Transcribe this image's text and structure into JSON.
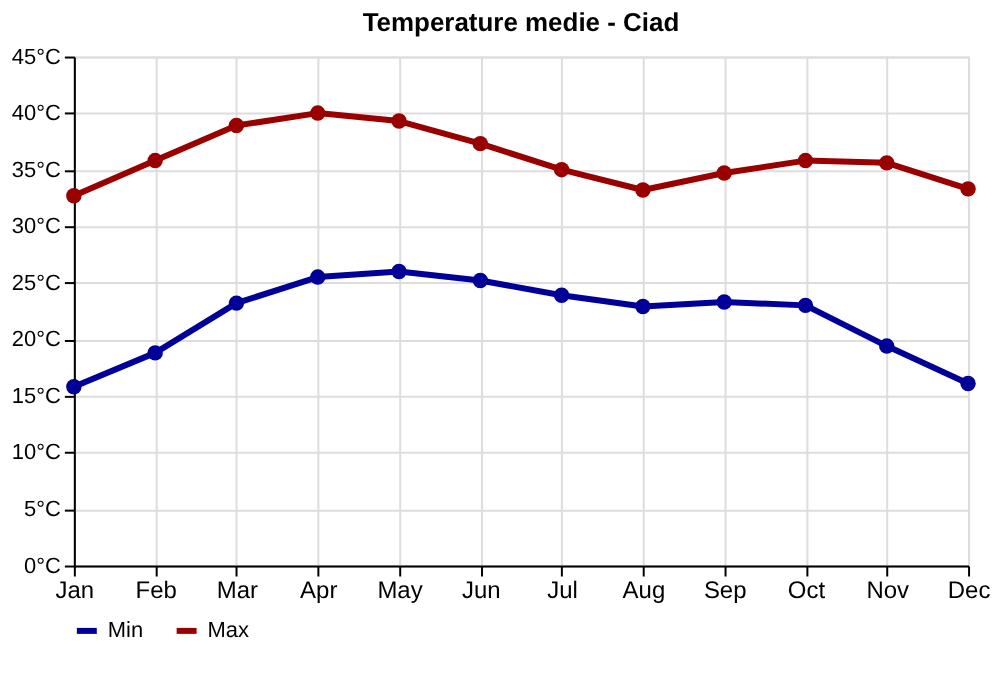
{
  "chart_data": {
    "type": "line",
    "title": "Temperature medie - Ciad",
    "categories": [
      "Jan",
      "Feb",
      "Mar",
      "Apr",
      "May",
      "Jun",
      "Jul",
      "Aug",
      "Sep",
      "Oct",
      "Nov",
      "Dec"
    ],
    "series": [
      {
        "name": "Min",
        "color": "#000099",
        "values": [
          15.8,
          18.8,
          23.2,
          25.5,
          26.0,
          25.2,
          23.9,
          22.9,
          23.3,
          23.0,
          19.4,
          16.1
        ]
      },
      {
        "name": "Max",
        "color": "#990000",
        "values": [
          32.7,
          35.8,
          38.9,
          40.0,
          39.3,
          37.3,
          35.0,
          33.2,
          34.7,
          35.8,
          35.6,
          33.3
        ]
      }
    ],
    "ylim": [
      0,
      45
    ],
    "yticks": [
      {
        "value": 0,
        "label": "0°C"
      },
      {
        "value": 5,
        "label": "5°C"
      },
      {
        "value": 10,
        "label": "10°C"
      },
      {
        "value": 15,
        "label": "15°C"
      },
      {
        "value": 20,
        "label": "20°C"
      },
      {
        "value": 25,
        "label": "25°C"
      },
      {
        "value": 30,
        "label": "30°C"
      },
      {
        "value": 35,
        "label": "35°C"
      },
      {
        "value": 40,
        "label": "40°C"
      },
      {
        "value": 45,
        "label": "45°C"
      }
    ],
    "grid": true,
    "legend": "bottom left",
    "marker": "circle",
    "line_style": "solid"
  }
}
